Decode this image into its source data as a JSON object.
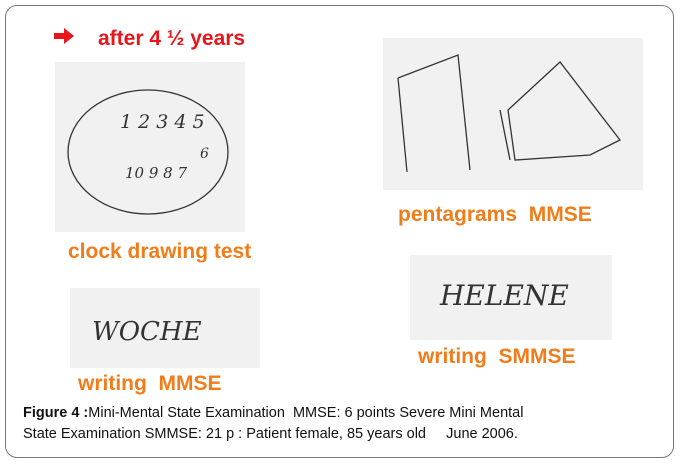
{
  "header": {
    "title": "after 4 ½ years"
  },
  "panels": [
    {
      "label": "clock drawing test",
      "handwriting": [
        "1 2 3 4 5",
        "6",
        "10 9 8 7"
      ]
    },
    {
      "label": "pentagrams  MMSE"
    },
    {
      "label": "writing  MMSE",
      "handwriting": [
        "WOCHE"
      ]
    },
    {
      "label": "writing  SMMSE",
      "handwriting": [
        "HELENE"
      ]
    }
  ],
  "caption": {
    "label": "Figure 4 :",
    "line1": "Mini-Mental State Examination  MMSE: 6 points Severe Mini Mental",
    "line2": "State Examination SMMSE: 21 p : Patient female, 85 years old     June 2006."
  }
}
